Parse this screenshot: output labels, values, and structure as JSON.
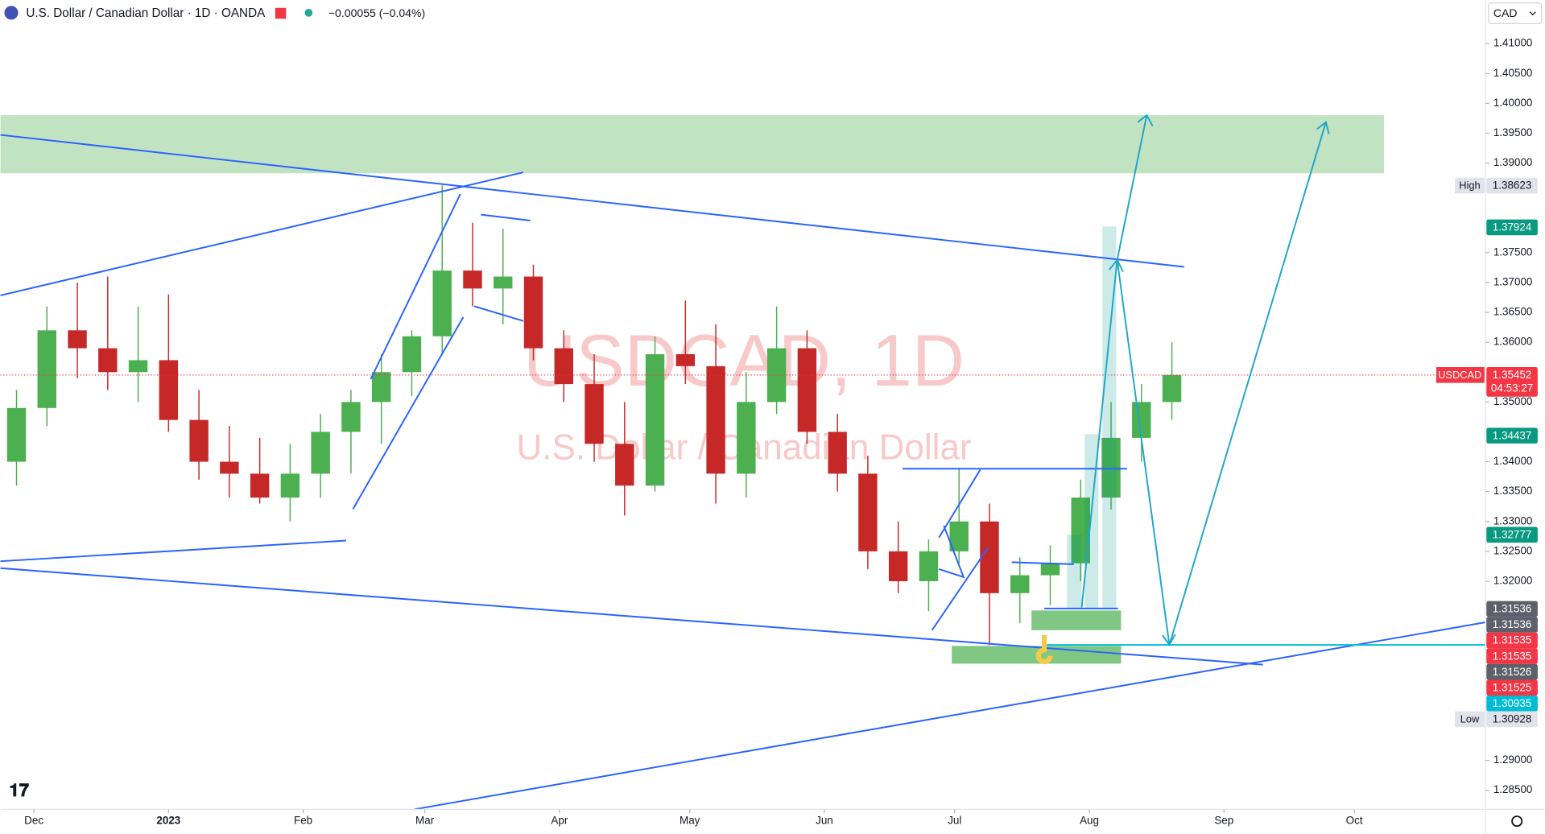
{
  "header": {
    "symbol": "U.S. Dollar / Canadian Dollar · 1D · OANDA",
    "change": "−0.00055 (−0.04%)",
    "currency": "CAD"
  },
  "chart_data": {
    "type": "candlestick",
    "watermark": "USDCAD, 1D",
    "watermark_subtitle": "U.S. Dollar / Canadian Dollar",
    "up_color": "#4caf50",
    "down_color": "#c62828",
    "x": [
      -4,
      3,
      10,
      17,
      24,
      31,
      38,
      45,
      52,
      59,
      66,
      73,
      80,
      87,
      94,
      101,
      108,
      115,
      122,
      129,
      136,
      143,
      150,
      157,
      164,
      171,
      178,
      185,
      192,
      199,
      206,
      213,
      220,
      227,
      234,
      241,
      248,
      255,
      262
    ],
    "open": [
      1.34,
      1.349,
      1.362,
      1.359,
      1.355,
      1.357,
      1.347,
      1.34,
      1.338,
      1.334,
      1.338,
      1.345,
      1.35,
      1.355,
      1.361,
      1.372,
      1.369,
      1.371,
      1.359,
      1.353,
      1.343,
      1.336,
      1.358,
      1.356,
      1.338,
      1.35,
      1.359,
      1.345,
      1.338,
      1.325,
      1.32,
      1.325,
      1.33,
      1.318,
      1.321,
      1.323,
      1.334,
      1.344,
      1.35
    ],
    "high": [
      1.352,
      1.366,
      1.37,
      1.371,
      1.366,
      1.368,
      1.352,
      1.346,
      1.344,
      1.343,
      1.348,
      1.352,
      1.358,
      1.362,
      1.38623,
      1.38,
      1.379,
      1.373,
      1.362,
      1.358,
      1.35,
      1.361,
      1.367,
      1.363,
      1.355,
      1.366,
      1.362,
      1.348,
      1.341,
      1.33,
      1.327,
      1.339,
      1.333,
      1.324,
      1.326,
      1.337,
      1.35,
      1.353,
      1.36
    ],
    "low": [
      1.336,
      1.346,
      1.354,
      1.352,
      1.35,
      1.345,
      1.337,
      1.334,
      1.333,
      1.33,
      1.334,
      1.338,
      1.343,
      1.351,
      1.358,
      1.366,
      1.363,
      1.357,
      1.35,
      1.34,
      1.331,
      1.335,
      1.353,
      1.333,
      1.334,
      1.348,
      1.343,
      1.335,
      1.322,
      1.318,
      1.315,
      1.323,
      1.30928,
      1.313,
      1.316,
      1.32,
      1.332,
      1.34,
      1.347
    ],
    "close": [
      1.349,
      1.362,
      1.359,
      1.355,
      1.357,
      1.347,
      1.34,
      1.338,
      1.334,
      1.338,
      1.345,
      1.35,
      1.355,
      1.361,
      1.372,
      1.369,
      1.371,
      1.359,
      1.353,
      1.343,
      1.336,
      1.358,
      1.356,
      1.338,
      1.35,
      1.359,
      1.345,
      1.338,
      1.325,
      1.32,
      1.325,
      1.33,
      1.318,
      1.321,
      1.323,
      1.334,
      1.344,
      1.35,
      1.35452
    ],
    "xlim": [
      -7.7,
      334.2
    ],
    "xticks": [
      {
        "value": 0,
        "label": "Dec"
      },
      {
        "value": 31,
        "label": "2023"
      },
      {
        "value": 62,
        "label": "Feb"
      },
      {
        "value": 90,
        "label": "Mar"
      },
      {
        "value": 121,
        "label": "Apr"
      },
      {
        "value": 151,
        "label": "May"
      },
      {
        "value": 182,
        "label": "Jun"
      },
      {
        "value": 212,
        "label": "Jul"
      },
      {
        "value": 243,
        "label": "Aug"
      },
      {
        "value": 274,
        "label": "Sep"
      },
      {
        "value": 304,
        "label": "Oct"
      }
    ],
    "ylim": [
      1.2818,
      1.4173
    ],
    "yticks": [
      {
        "value": 1.41,
        "label": "1.41000"
      },
      {
        "value": 1.405,
        "label": "1.40500"
      },
      {
        "value": 1.4,
        "label": "1.40000"
      },
      {
        "value": 1.395,
        "label": "1.39500"
      },
      {
        "value": 1.39,
        "label": "1.39000"
      },
      {
        "value": 1.375,
        "label": "1.37500"
      },
      {
        "value": 1.37,
        "label": "1.37000"
      },
      {
        "value": 1.365,
        "label": "1.36500"
      },
      {
        "value": 1.36,
        "label": "1.36000"
      },
      {
        "value": 1.35,
        "label": "1.35000"
      },
      {
        "value": 1.34,
        "label": "1.34000"
      },
      {
        "value": 1.335,
        "label": "1.33500"
      },
      {
        "value": 1.33,
        "label": "1.33000"
      },
      {
        "value": 1.325,
        "label": "1.32500"
      },
      {
        "value": 1.32,
        "label": "1.32000"
      },
      {
        "value": 1.29,
        "label": "1.29000"
      },
      {
        "value": 1.285,
        "label": "1.28500"
      }
    ],
    "grid": false,
    "price_tags": [
      {
        "label": "High",
        "value": 1.38623,
        "color": "#e0e3eb"
      },
      {
        "value": 1.37924,
        "color": "#089981"
      },
      {
        "label": "USDCAD",
        "value": 1.35452,
        "countdown": "04:53:27",
        "color": "#f23645"
      },
      {
        "value": 1.34437,
        "color": "#089981"
      },
      {
        "value": 1.32777,
        "color": "#089981"
      },
      {
        "value": 1.31536,
        "color": "#5d606b"
      },
      {
        "value": 1.31536,
        "color": "#5d606b"
      },
      {
        "value": 1.31535,
        "color": "#f23645"
      },
      {
        "value": 1.31535,
        "color": "#f23645"
      },
      {
        "value": 1.31526,
        "color": "#5d606b"
      },
      {
        "value": 1.31525,
        "color": "#f23645"
      },
      {
        "value": 1.30935,
        "color": "#00bcd4"
      },
      {
        "label": "Low",
        "value": 1.30928,
        "color": "#e0e3eb"
      }
    ]
  }
}
